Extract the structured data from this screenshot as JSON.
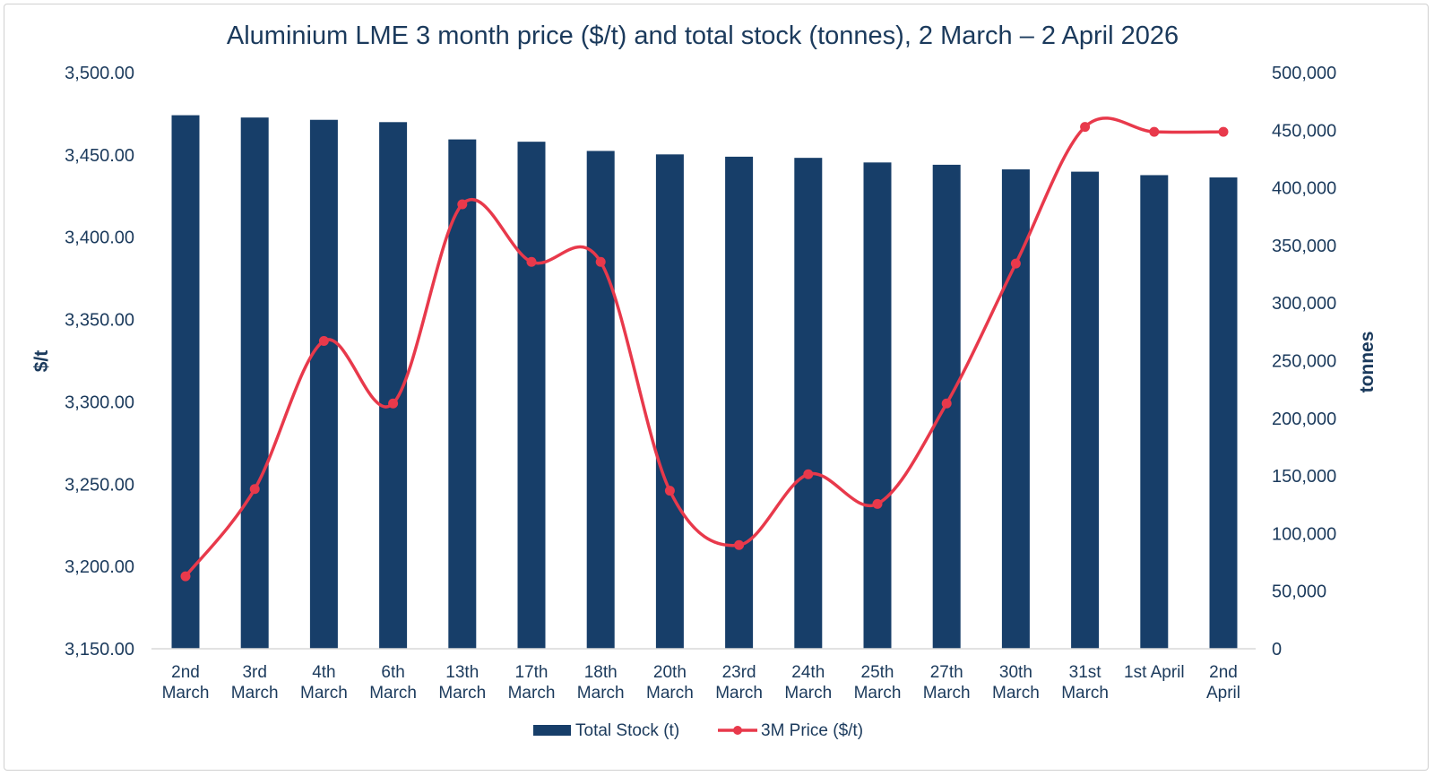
{
  "chart_data": {
    "type": "bar+line",
    "title": "Aluminium LME 3 month price ($/t) and total stock (tonnes), 2 March – 2 April 2026",
    "categories": [
      [
        "2nd",
        "March"
      ],
      [
        "3rd",
        "March"
      ],
      [
        "4th",
        "March"
      ],
      [
        "6th",
        "March"
      ],
      [
        "13th",
        "March"
      ],
      [
        "17th",
        "March"
      ],
      [
        "18th",
        "March"
      ],
      [
        "20th",
        "March"
      ],
      [
        "23rd",
        "March"
      ],
      [
        "24th",
        "March"
      ],
      [
        "25th",
        "March"
      ],
      [
        "27th",
        "March"
      ],
      [
        "30th",
        "March"
      ],
      [
        "31st",
        "March"
      ],
      [
        "1st April"
      ],
      [
        "2nd",
        "April"
      ]
    ],
    "series": [
      {
        "name": "Total Stock (t)",
        "type": "bar",
        "axis": "right",
        "color": "#173e69",
        "values": [
          463000,
          461000,
          459000,
          457000,
          442000,
          440000,
          432000,
          429000,
          427000,
          426000,
          422000,
          420000,
          416000,
          414000,
          411000,
          409000
        ]
      },
      {
        "name": "3M Price ($/t)",
        "type": "line",
        "axis": "left",
        "color": "#e8394b",
        "values": [
          3194,
          3247,
          3337,
          3299,
          3420,
          3385,
          3385,
          3246,
          3213,
          3256,
          3238,
          3299,
          3384,
          3467,
          3464,
          3464
        ]
      }
    ],
    "y_left": {
      "label": "$/t",
      "range": [
        3150,
        3500
      ],
      "ticks": [
        3150,
        3200,
        3250,
        3300,
        3350,
        3400,
        3450,
        3500
      ],
      "tick_labels": [
        "3,150.00",
        "3,200.00",
        "3,250.00",
        "3,300.00",
        "3,350.00",
        "3,400.00",
        "3,450.00",
        "3,500.00"
      ]
    },
    "y_right": {
      "label": "tonnes",
      "range": [
        0,
        500000
      ],
      "ticks": [
        0,
        50000,
        100000,
        150000,
        200000,
        250000,
        300000,
        350000,
        400000,
        450000,
        500000
      ],
      "tick_labels": [
        "0",
        "50,000",
        "100,000",
        "150,000",
        "200,000",
        "250,000",
        "300,000",
        "350,000",
        "400,000",
        "450,000",
        "500,000"
      ]
    },
    "grid": false,
    "legend": "bottom-center",
    "text_color": "#1b3a5c"
  }
}
